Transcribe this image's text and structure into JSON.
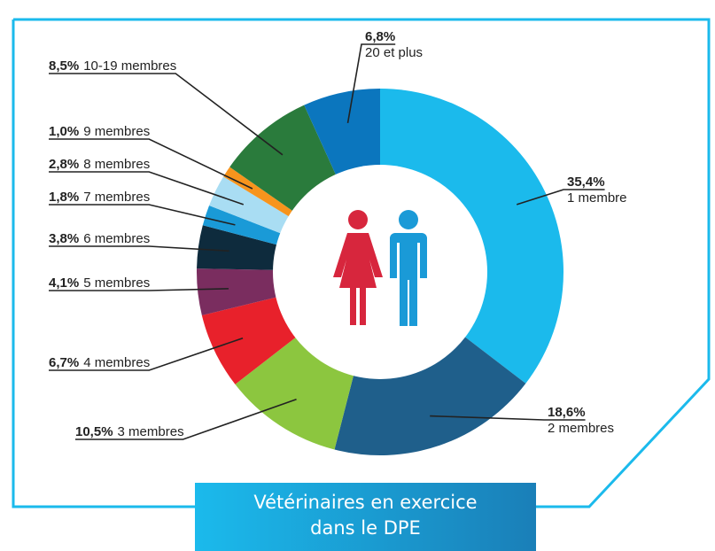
{
  "chart_data": {
    "type": "pie",
    "title": "Vétérinaires en exercice dans le DPE",
    "categories": [
      "1 membre",
      "2 membres",
      "3 membres",
      "4 membres",
      "5 membres",
      "6 membres",
      "7 membres",
      "8 membres",
      "9 membres",
      "10-19 membres",
      "20 et plus"
    ],
    "values": [
      35.4,
      18.6,
      10.5,
      6.7,
      4.1,
      3.8,
      1.8,
      2.8,
      1.0,
      8.5,
      6.8
    ],
    "value_labels": [
      "35,4%",
      "18,6%",
      "10,5%",
      "6,7%",
      "4,1%",
      "3,8%",
      "1,8%",
      "2,8%",
      "1,0%",
      "8,5%",
      "6,8%"
    ],
    "colors": [
      "#1bbaec",
      "#1f5f8b",
      "#8cc63f",
      "#e8212b",
      "#7a2d5f",
      "#0e2b3d",
      "#1a9ad7",
      "#a9ddf3",
      "#f7941d",
      "#2a7b3c",
      "#0b76be"
    ]
  }
}
